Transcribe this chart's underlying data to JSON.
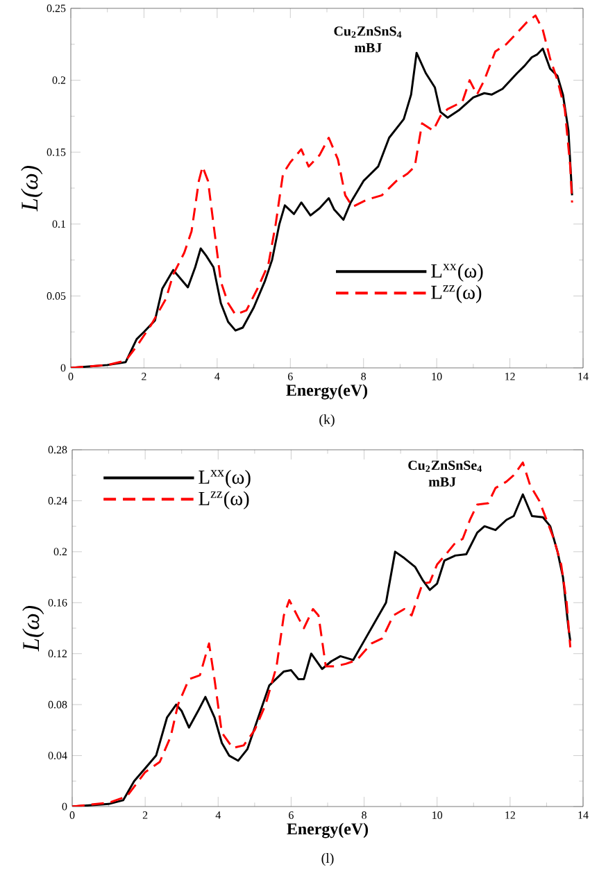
{
  "chart_data": [
    {
      "type": "line",
      "title": "Cu$_{2}$ZnSnS$_{4}$",
      "subtitle": "mBJ",
      "xlabel": "Energy(eV)",
      "ylabel": "L(ω)",
      "annotations": [
        "(k)"
      ],
      "xlim": [
        0,
        14
      ],
      "xticks": [
        0,
        2,
        4,
        6,
        8,
        10,
        12,
        14
      ],
      "ylim": [
        0,
        0.25
      ],
      "yticks": [
        0,
        0.05,
        0.1,
        0.15,
        0.2,
        0.25
      ],
      "legend": "bottom right",
      "series": [
        {
          "name": "L$^{xx}$(ω)",
          "color": "#000000",
          "line_style": "solid",
          "x": [
            0,
            0.5,
            1,
            1.5,
            1.8,
            2,
            2.3,
            2.5,
            2.8,
            3.0,
            3.2,
            3.4,
            3.55,
            3.7,
            3.9,
            4.1,
            4.3,
            4.5,
            4.7,
            5.0,
            5.3,
            5.5,
            5.7,
            5.85,
            6.1,
            6.3,
            6.55,
            6.8,
            7.05,
            7.2,
            7.45,
            7.65,
            8,
            8.4,
            8.7,
            9.1,
            9.3,
            9.45,
            9.7,
            9.95,
            10.1,
            10.3,
            10.6,
            11,
            11.3,
            11.5,
            11.8,
            12.2,
            12.4,
            12.6,
            12.75,
            12.9,
            13.1,
            13.3,
            13.45,
            13.6,
            13.7
          ],
          "values": [
            0,
            0.001,
            0.002,
            0.004,
            0.02,
            0.025,
            0.033,
            0.055,
            0.068,
            0.062,
            0.056,
            0.07,
            0.083,
            0.078,
            0.07,
            0.045,
            0.032,
            0.026,
            0.028,
            0.042,
            0.06,
            0.075,
            0.1,
            0.113,
            0.107,
            0.115,
            0.106,
            0.111,
            0.118,
            0.11,
            0.103,
            0.115,
            0.13,
            0.14,
            0.16,
            0.173,
            0.19,
            0.219,
            0.205,
            0.195,
            0.178,
            0.174,
            0.179,
            0.188,
            0.191,
            0.19,
            0.194,
            0.205,
            0.21,
            0.216,
            0.218,
            0.222,
            0.208,
            0.203,
            0.19,
            0.165,
            0.12
          ]
        },
        {
          "name": "L$^{zz}$(ω)",
          "color": "#ff0000",
          "line_style": "dashed",
          "x": [
            0,
            1,
            1.5,
            1.8,
            2.2,
            2.6,
            2.8,
            3.1,
            3.3,
            3.5,
            3.6,
            3.75,
            3.9,
            4.1,
            4.3,
            4.5,
            4.8,
            5.1,
            5.4,
            5.6,
            5.8,
            6.0,
            6.3,
            6.5,
            6.8,
            7.05,
            7.3,
            7.5,
            7.7,
            8.1,
            8.5,
            8.9,
            9.2,
            9.4,
            9.6,
            9.9,
            10.1,
            10.3,
            10.7,
            10.9,
            11.1,
            11.3,
            11.6,
            11.9,
            12.2,
            12.45,
            12.7,
            12.9,
            13.1,
            13.3,
            13.5,
            13.65,
            13.7
          ],
          "values": [
            0,
            0.002,
            0.005,
            0.015,
            0.03,
            0.048,
            0.065,
            0.08,
            0.095,
            0.13,
            0.14,
            0.13,
            0.1,
            0.06,
            0.045,
            0.037,
            0.04,
            0.055,
            0.072,
            0.1,
            0.135,
            0.143,
            0.152,
            0.14,
            0.148,
            0.16,
            0.145,
            0.12,
            0.112,
            0.117,
            0.12,
            0.13,
            0.135,
            0.14,
            0.17,
            0.165,
            0.175,
            0.18,
            0.185,
            0.2,
            0.19,
            0.2,
            0.22,
            0.225,
            0.233,
            0.24,
            0.245,
            0.235,
            0.215,
            0.2,
            0.18,
            0.14,
            0.115
          ]
        }
      ]
    },
    {
      "type": "line",
      "title": "Cu$_{2}$ZnSnSe$_{4}$",
      "subtitle": "mBJ",
      "xlabel": "Energy(eV)",
      "ylabel": "L(ω)",
      "annotations": [
        "(l)"
      ],
      "xlim": [
        0,
        14
      ],
      "xticks": [
        0,
        2,
        4,
        6,
        8,
        10,
        12,
        14
      ],
      "ylim": [
        0,
        0.28
      ],
      "yticks": [
        0,
        0.04,
        0.08,
        0.12,
        0.16,
        0.2,
        0.24,
        0.28
      ],
      "legend": "top left",
      "series": [
        {
          "name": "L$^{xx}$(ω)",
          "color": "#000000",
          "line_style": "solid",
          "x": [
            0,
            1,
            1.4,
            1.7,
            2,
            2.3,
            2.6,
            2.85,
            3.0,
            3.2,
            3.45,
            3.65,
            3.9,
            4.1,
            4.3,
            4.55,
            4.8,
            5.1,
            5.4,
            5.8,
            6.0,
            6.2,
            6.35,
            6.55,
            6.85,
            7.1,
            7.35,
            7.7,
            8.0,
            8.3,
            8.6,
            8.85,
            9.1,
            9.4,
            9.6,
            9.8,
            10.0,
            10.2,
            10.5,
            10.8,
            11.1,
            11.3,
            11.6,
            11.9,
            12.1,
            12.35,
            12.6,
            12.9,
            13.1,
            13.3,
            13.45,
            13.6,
            13.65
          ],
          "values": [
            0,
            0.002,
            0.005,
            0.02,
            0.03,
            0.04,
            0.07,
            0.08,
            0.075,
            0.062,
            0.075,
            0.086,
            0.07,
            0.05,
            0.04,
            0.036,
            0.045,
            0.07,
            0.095,
            0.106,
            0.107,
            0.1,
            0.1,
            0.12,
            0.108,
            0.114,
            0.118,
            0.115,
            0.13,
            0.145,
            0.16,
            0.2,
            0.195,
            0.188,
            0.178,
            0.17,
            0.175,
            0.193,
            0.197,
            0.198,
            0.215,
            0.22,
            0.217,
            0.225,
            0.228,
            0.245,
            0.228,
            0.227,
            0.22,
            0.2,
            0.18,
            0.14,
            0.13
          ]
        },
        {
          "name": "L$^{zz}$(ω)",
          "color": "#ff0000",
          "line_style": "dashed",
          "x": [
            0,
            1,
            1.5,
            2,
            2.4,
            2.7,
            2.9,
            3.2,
            3.5,
            3.65,
            3.75,
            3.9,
            4.1,
            4.4,
            4.7,
            5.0,
            5.3,
            5.6,
            5.8,
            5.95,
            6.2,
            6.35,
            6.6,
            6.75,
            6.95,
            7.2,
            7.5,
            7.8,
            8.2,
            8.5,
            8.8,
            9.1,
            9.3,
            9.6,
            9.8,
            10.0,
            10.3,
            10.5,
            10.7,
            10.9,
            11.1,
            11.4,
            11.6,
            11.9,
            12.1,
            12.35,
            12.55,
            12.8,
            13.0,
            13.2,
            13.4,
            13.55,
            13.65
          ],
          "values": [
            0,
            0.003,
            0.008,
            0.027,
            0.035,
            0.055,
            0.08,
            0.1,
            0.103,
            0.118,
            0.128,
            0.1,
            0.058,
            0.046,
            0.048,
            0.06,
            0.08,
            0.11,
            0.15,
            0.162,
            0.148,
            0.14,
            0.155,
            0.15,
            0.11,
            0.11,
            0.112,
            0.115,
            0.128,
            0.132,
            0.15,
            0.155,
            0.15,
            0.175,
            0.176,
            0.19,
            0.2,
            0.207,
            0.21,
            0.225,
            0.237,
            0.238,
            0.25,
            0.255,
            0.26,
            0.27,
            0.252,
            0.24,
            0.225,
            0.21,
            0.19,
            0.16,
            0.125
          ]
        }
      ]
    }
  ]
}
